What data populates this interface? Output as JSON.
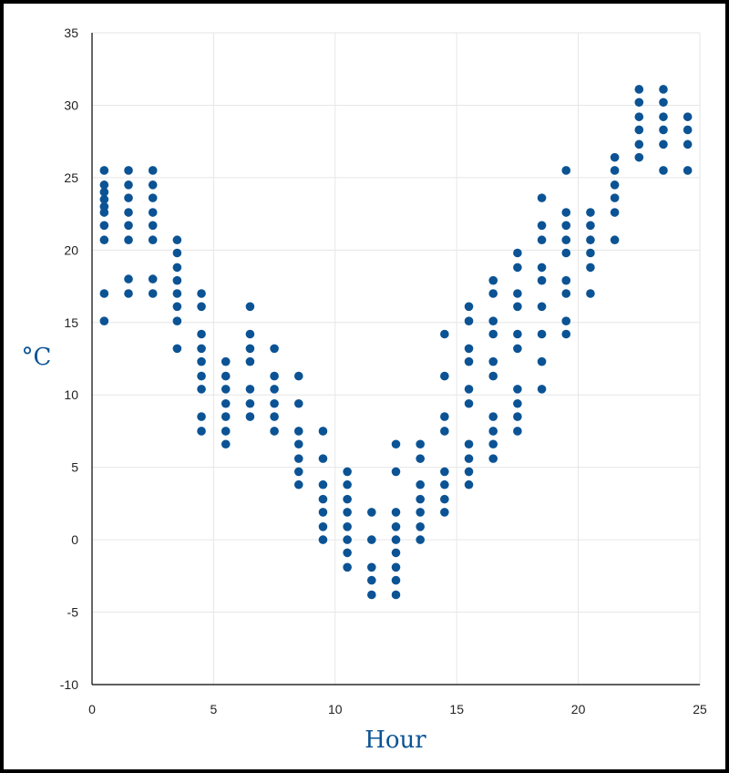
{
  "chart_data": {
    "type": "scatter",
    "title": "",
    "xlabel": "Hour",
    "ylabel": "°C",
    "xlim": [
      0,
      25
    ],
    "ylim": [
      -10,
      35
    ],
    "x_ticks": [
      "0",
      "5",
      "10",
      "15",
      "20",
      "25"
    ],
    "y_ticks": [
      "-10",
      "-5",
      "0",
      "5",
      "10",
      "15",
      "20",
      "25",
      "30",
      "35"
    ],
    "grid": true,
    "legend": "none",
    "colors": {
      "point": "#0b5394",
      "label": "#0b5394",
      "grid": "#e6e6e6",
      "axis": "#000000"
    },
    "series": [
      {
        "points": [
          [
            0.5,
            25.5
          ],
          [
            0.5,
            24.5
          ],
          [
            0.5,
            24.0
          ],
          [
            0.5,
            23.5
          ],
          [
            0.5,
            23.0
          ],
          [
            0.5,
            22.6
          ],
          [
            0.5,
            21.7
          ],
          [
            0.5,
            20.7
          ],
          [
            0.5,
            17.0
          ],
          [
            0.5,
            15.1
          ],
          [
            1.5,
            25.5
          ],
          [
            1.5,
            24.5
          ],
          [
            1.5,
            23.6
          ],
          [
            1.5,
            22.6
          ],
          [
            1.5,
            21.7
          ],
          [
            1.5,
            20.7
          ],
          [
            1.5,
            18.0
          ],
          [
            1.5,
            17.0
          ],
          [
            2.5,
            25.5
          ],
          [
            2.5,
            24.5
          ],
          [
            2.5,
            23.6
          ],
          [
            2.5,
            22.6
          ],
          [
            2.5,
            21.7
          ],
          [
            2.5,
            20.7
          ],
          [
            2.5,
            18.0
          ],
          [
            2.5,
            17.0
          ],
          [
            3.5,
            20.7
          ],
          [
            3.5,
            19.8
          ],
          [
            3.5,
            18.8
          ],
          [
            3.5,
            17.9
          ],
          [
            3.5,
            17.0
          ],
          [
            3.5,
            16.1
          ],
          [
            3.5,
            15.1
          ],
          [
            3.5,
            13.2
          ],
          [
            4.5,
            17.0
          ],
          [
            4.5,
            16.1
          ],
          [
            4.5,
            14.2
          ],
          [
            4.5,
            13.2
          ],
          [
            4.5,
            12.3
          ],
          [
            4.5,
            11.3
          ],
          [
            4.5,
            10.4
          ],
          [
            4.5,
            8.5
          ],
          [
            4.5,
            7.5
          ],
          [
            5.5,
            12.3
          ],
          [
            5.5,
            11.3
          ],
          [
            5.5,
            10.4
          ],
          [
            5.5,
            9.4
          ],
          [
            5.5,
            8.5
          ],
          [
            5.5,
            7.5
          ],
          [
            5.5,
            6.6
          ],
          [
            6.5,
            16.1
          ],
          [
            6.5,
            14.2
          ],
          [
            6.5,
            13.2
          ],
          [
            6.5,
            12.3
          ],
          [
            6.5,
            10.4
          ],
          [
            6.5,
            9.4
          ],
          [
            6.5,
            8.5
          ],
          [
            7.5,
            13.2
          ],
          [
            7.5,
            11.3
          ],
          [
            7.5,
            10.4
          ],
          [
            7.5,
            9.4
          ],
          [
            7.5,
            8.5
          ],
          [
            7.5,
            7.5
          ],
          [
            8.5,
            11.3
          ],
          [
            8.5,
            9.4
          ],
          [
            8.5,
            7.5
          ],
          [
            8.5,
            6.6
          ],
          [
            8.5,
            5.6
          ],
          [
            8.5,
            4.7
          ],
          [
            8.5,
            3.8
          ],
          [
            9.5,
            7.5
          ],
          [
            9.5,
            5.6
          ],
          [
            9.5,
            3.8
          ],
          [
            9.5,
            2.8
          ],
          [
            9.5,
            1.9
          ],
          [
            9.5,
            0.9
          ],
          [
            9.5,
            0.0
          ],
          [
            10.5,
            4.7
          ],
          [
            10.5,
            3.8
          ],
          [
            10.5,
            2.8
          ],
          [
            10.5,
            1.9
          ],
          [
            10.5,
            0.9
          ],
          [
            10.5,
            0.0
          ],
          [
            10.5,
            -0.9
          ],
          [
            10.5,
            -1.9
          ],
          [
            11.5,
            1.9
          ],
          [
            11.5,
            0.0
          ],
          [
            11.5,
            -1.9
          ],
          [
            11.5,
            -2.8
          ],
          [
            11.5,
            -3.8
          ],
          [
            12.5,
            6.6
          ],
          [
            12.5,
            4.7
          ],
          [
            12.5,
            1.9
          ],
          [
            12.5,
            0.9
          ],
          [
            12.5,
            0.0
          ],
          [
            12.5,
            -0.9
          ],
          [
            12.5,
            -1.9
          ],
          [
            12.5,
            -2.8
          ],
          [
            12.5,
            -3.8
          ],
          [
            13.5,
            6.6
          ],
          [
            13.5,
            5.6
          ],
          [
            13.5,
            3.8
          ],
          [
            13.5,
            2.8
          ],
          [
            13.5,
            1.9
          ],
          [
            13.5,
            0.9
          ],
          [
            13.5,
            0.0
          ],
          [
            14.5,
            14.2
          ],
          [
            14.5,
            11.3
          ],
          [
            14.5,
            8.5
          ],
          [
            14.5,
            7.5
          ],
          [
            14.5,
            4.7
          ],
          [
            14.5,
            3.8
          ],
          [
            14.5,
            2.8
          ],
          [
            14.5,
            1.9
          ],
          [
            15.5,
            16.1
          ],
          [
            15.5,
            15.1
          ],
          [
            15.5,
            13.2
          ],
          [
            15.5,
            12.3
          ],
          [
            15.5,
            10.4
          ],
          [
            15.5,
            9.4
          ],
          [
            15.5,
            6.6
          ],
          [
            15.5,
            5.6
          ],
          [
            15.5,
            4.7
          ],
          [
            15.5,
            3.8
          ],
          [
            16.5,
            17.9
          ],
          [
            16.5,
            17.0
          ],
          [
            16.5,
            15.1
          ],
          [
            16.5,
            14.2
          ],
          [
            16.5,
            12.3
          ],
          [
            16.5,
            11.3
          ],
          [
            16.5,
            8.5
          ],
          [
            16.5,
            7.5
          ],
          [
            16.5,
            6.6
          ],
          [
            16.5,
            5.6
          ],
          [
            17.5,
            19.8
          ],
          [
            17.5,
            18.8
          ],
          [
            17.5,
            17.0
          ],
          [
            17.5,
            16.1
          ],
          [
            17.5,
            14.2
          ],
          [
            17.5,
            13.2
          ],
          [
            17.5,
            10.4
          ],
          [
            17.5,
            9.4
          ],
          [
            17.5,
            8.5
          ],
          [
            17.5,
            7.5
          ],
          [
            18.5,
            23.6
          ],
          [
            18.5,
            21.7
          ],
          [
            18.5,
            20.7
          ],
          [
            18.5,
            18.8
          ],
          [
            18.5,
            17.9
          ],
          [
            18.5,
            16.1
          ],
          [
            18.5,
            14.2
          ],
          [
            18.5,
            12.3
          ],
          [
            18.5,
            10.4
          ],
          [
            19.5,
            25.5
          ],
          [
            19.5,
            22.6
          ],
          [
            19.5,
            21.7
          ],
          [
            19.5,
            20.7
          ],
          [
            19.5,
            19.8
          ],
          [
            19.5,
            17.9
          ],
          [
            19.5,
            17.0
          ],
          [
            19.5,
            15.1
          ],
          [
            19.5,
            14.2
          ],
          [
            20.5,
            22.6
          ],
          [
            20.5,
            21.7
          ],
          [
            20.5,
            20.7
          ],
          [
            20.5,
            19.8
          ],
          [
            20.5,
            18.8
          ],
          [
            20.5,
            17.0
          ],
          [
            21.5,
            26.4
          ],
          [
            21.5,
            25.5
          ],
          [
            21.5,
            24.5
          ],
          [
            21.5,
            23.6
          ],
          [
            21.5,
            22.6
          ],
          [
            21.5,
            20.7
          ],
          [
            22.5,
            31.1
          ],
          [
            22.5,
            30.2
          ],
          [
            22.5,
            29.2
          ],
          [
            22.5,
            28.3
          ],
          [
            22.5,
            27.3
          ],
          [
            22.5,
            26.4
          ],
          [
            23.5,
            31.1
          ],
          [
            23.5,
            30.2
          ],
          [
            23.5,
            29.2
          ],
          [
            23.5,
            28.3
          ],
          [
            23.5,
            27.3
          ],
          [
            23.5,
            25.5
          ],
          [
            24.5,
            29.2
          ],
          [
            24.5,
            28.3
          ],
          [
            24.5,
            27.3
          ],
          [
            24.5,
            25.5
          ]
        ]
      }
    ]
  }
}
